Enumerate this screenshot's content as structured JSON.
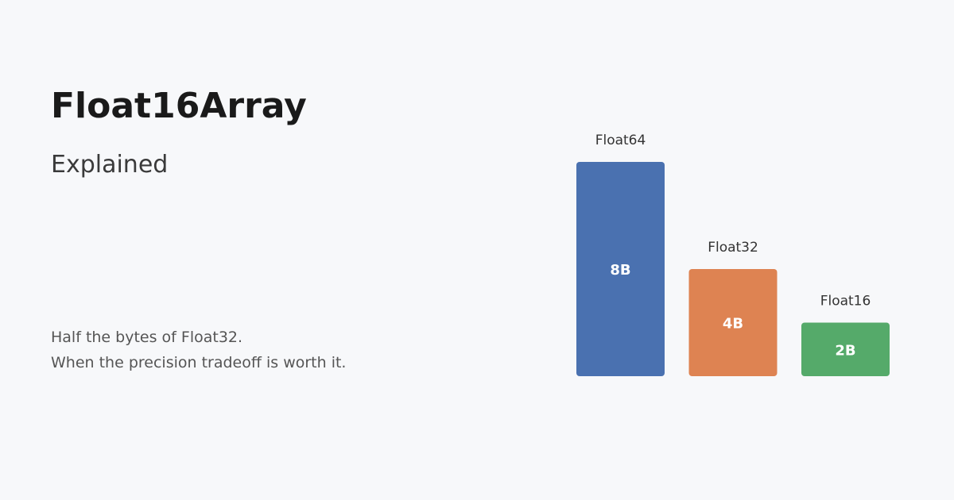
{
  "header": {
    "title": "Float16Array",
    "subtitle": "Explained"
  },
  "tagline": {
    "line1": "Half the bytes of Float32.",
    "line2": "When the precision tradeoff is worth it."
  },
  "chart_data": {
    "type": "bar",
    "categories": [
      "Float64",
      "Float32",
      "Float16"
    ],
    "values": [
      8,
      4,
      2
    ],
    "value_labels": [
      "8B",
      "4B",
      "2B"
    ],
    "colors": [
      "#4a71b0",
      "#de8352",
      "#55aa6a"
    ],
    "title": "",
    "xlabel": "",
    "ylabel": "",
    "ylim": [
      0,
      8
    ],
    "grid": false,
    "legend": "none"
  }
}
